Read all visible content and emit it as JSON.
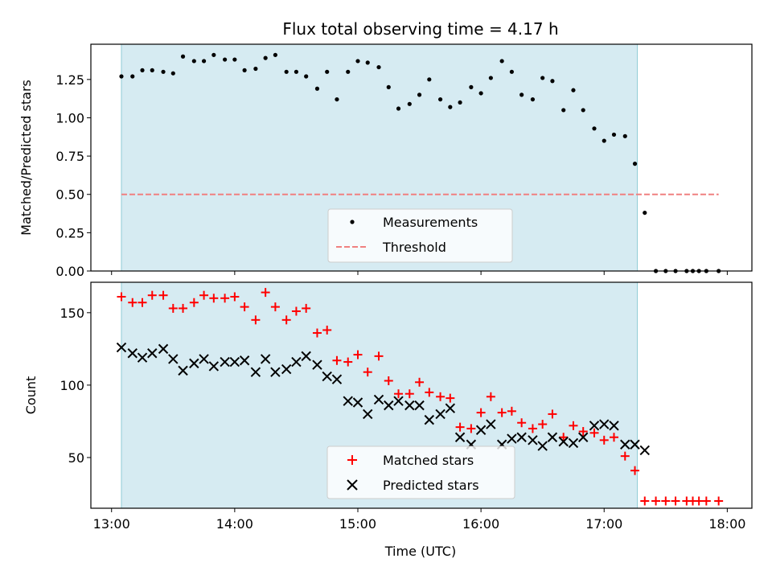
{
  "chart_data": {
    "type": "scatter",
    "title": "Flux total observing time = 4.17 h",
    "xlabel": "Time (UTC)",
    "x_tick_labels": [
      "13:00",
      "14:00",
      "15:00",
      "16:00",
      "17:00",
      "18:00"
    ],
    "x_ticks_hours": [
      13,
      14,
      15,
      16,
      17,
      18
    ],
    "xlim_hours": [
      12.832,
      18.2
    ],
    "shaded_span_hours": [
      13.08,
      17.27
    ],
    "colors": {
      "shade": "#add8e6",
      "measurement": "#000000",
      "threshold": "#f08080",
      "matched": "#ff0000",
      "predicted": "#000000"
    },
    "panels": [
      {
        "ylabel": "Matched/Predicted stars",
        "ylim": [
          0,
          1.48
        ],
        "y_ticks": [
          0.0,
          0.25,
          0.5,
          0.75,
          1.0,
          1.25
        ],
        "y_tick_labels": [
          "0.00",
          "0.25",
          "0.50",
          "0.75",
          "1.00",
          "1.25"
        ],
        "legend_position": "lower-center",
        "series": [
          {
            "name": "Measurements",
            "marker": "dot",
            "points": [
              [
                13.08,
                1.27
              ],
              [
                13.17,
                1.27
              ],
              [
                13.25,
                1.31
              ],
              [
                13.33,
                1.31
              ],
              [
                13.42,
                1.3
              ],
              [
                13.5,
                1.29
              ],
              [
                13.58,
                1.4
              ],
              [
                13.67,
                1.37
              ],
              [
                13.75,
                1.37
              ],
              [
                13.83,
                1.41
              ],
              [
                13.92,
                1.38
              ],
              [
                14.0,
                1.38
              ],
              [
                14.08,
                1.31
              ],
              [
                14.17,
                1.32
              ],
              [
                14.25,
                1.39
              ],
              [
                14.33,
                1.41
              ],
              [
                14.42,
                1.3
              ],
              [
                14.5,
                1.3
              ],
              [
                14.58,
                1.27
              ],
              [
                14.67,
                1.19
              ],
              [
                14.75,
                1.3
              ],
              [
                14.83,
                1.12
              ],
              [
                14.92,
                1.3
              ],
              [
                15.0,
                1.37
              ],
              [
                15.08,
                1.36
              ],
              [
                15.17,
                1.33
              ],
              [
                15.25,
                1.2
              ],
              [
                15.33,
                1.06
              ],
              [
                15.42,
                1.09
              ],
              [
                15.5,
                1.15
              ],
              [
                15.58,
                1.25
              ],
              [
                15.67,
                1.12
              ],
              [
                15.75,
                1.07
              ],
              [
                15.83,
                1.1
              ],
              [
                15.92,
                1.2
              ],
              [
                16.0,
                1.16
              ],
              [
                16.08,
                1.26
              ],
              [
                16.17,
                1.37
              ],
              [
                16.25,
                1.3
              ],
              [
                16.33,
                1.15
              ],
              [
                16.42,
                1.12
              ],
              [
                16.5,
                1.26
              ],
              [
                16.58,
                1.24
              ],
              [
                16.67,
                1.05
              ],
              [
                16.75,
                1.18
              ],
              [
                16.83,
                1.05
              ],
              [
                16.92,
                0.93
              ],
              [
                17.0,
                0.85
              ],
              [
                17.08,
                0.89
              ],
              [
                17.17,
                0.88
              ],
              [
                17.25,
                0.7
              ],
              [
                17.33,
                0.38
              ],
              [
                17.42,
                0.0
              ],
              [
                17.5,
                0.0
              ],
              [
                17.58,
                0.0
              ],
              [
                17.67,
                0.0
              ],
              [
                17.72,
                0.0
              ],
              [
                17.77,
                0.0
              ],
              [
                17.83,
                0.0
              ],
              [
                17.93,
                0.0
              ]
            ]
          },
          {
            "name": "Threshold",
            "marker": "dashed-line",
            "x_range": [
              13.08,
              17.93
            ],
            "value": 0.5
          }
        ]
      },
      {
        "ylabel": "Count",
        "ylim": [
          15,
          171
        ],
        "y_ticks": [
          50,
          100,
          150
        ],
        "y_tick_labels": [
          "50",
          "100",
          "150"
        ],
        "legend_position": "lower-center",
        "series": [
          {
            "name": "Matched stars",
            "marker": "plus",
            "points": [
              [
                13.08,
                161
              ],
              [
                13.17,
                157
              ],
              [
                13.25,
                157
              ],
              [
                13.33,
                162
              ],
              [
                13.42,
                162
              ],
              [
                13.5,
                153
              ],
              [
                13.58,
                153
              ],
              [
                13.67,
                157
              ],
              [
                13.75,
                162
              ],
              [
                13.83,
                160
              ],
              [
                13.92,
                160
              ],
              [
                14.0,
                161
              ],
              [
                14.08,
                154
              ],
              [
                14.17,
                145
              ],
              [
                14.25,
                164
              ],
              [
                14.33,
                154
              ],
              [
                14.42,
                145
              ],
              [
                14.5,
                151
              ],
              [
                14.58,
                153
              ],
              [
                14.67,
                136
              ],
              [
                14.75,
                138
              ],
              [
                14.83,
                117
              ],
              [
                14.92,
                116
              ],
              [
                15.0,
                121
              ],
              [
                15.08,
                109
              ],
              [
                15.17,
                120
              ],
              [
                15.25,
                103
              ],
              [
                15.33,
                94
              ],
              [
                15.42,
                94
              ],
              [
                15.5,
                102
              ],
              [
                15.58,
                95
              ],
              [
                15.67,
                92
              ],
              [
                15.75,
                91
              ],
              [
                15.83,
                71
              ],
              [
                15.92,
                70
              ],
              [
                16.0,
                81
              ],
              [
                16.08,
                92
              ],
              [
                16.17,
                81
              ],
              [
                16.25,
                82
              ],
              [
                16.33,
                74
              ],
              [
                16.42,
                70
              ],
              [
                16.5,
                73
              ],
              [
                16.58,
                80
              ],
              [
                16.67,
                64
              ],
              [
                16.75,
                72
              ],
              [
                16.83,
                68
              ],
              [
                16.92,
                67
              ],
              [
                17.0,
                62
              ],
              [
                17.08,
                64
              ],
              [
                17.17,
                51
              ],
              [
                17.25,
                41
              ],
              [
                17.33,
                20
              ],
              [
                17.42,
                20
              ],
              [
                17.5,
                20
              ],
              [
                17.58,
                20
              ],
              [
                17.67,
                20
              ],
              [
                17.72,
                20
              ],
              [
                17.77,
                20
              ],
              [
                17.83,
                20
              ],
              [
                17.93,
                20
              ]
            ]
          },
          {
            "name": "Predicted stars",
            "marker": "cross",
            "points": [
              [
                13.08,
                126
              ],
              [
                13.17,
                122
              ],
              [
                13.25,
                119
              ],
              [
                13.33,
                122
              ],
              [
                13.42,
                125
              ],
              [
                13.5,
                118
              ],
              [
                13.58,
                110
              ],
              [
                13.67,
                115
              ],
              [
                13.75,
                118
              ],
              [
                13.83,
                113
              ],
              [
                13.92,
                116
              ],
              [
                14.0,
                116
              ],
              [
                14.08,
                117
              ],
              [
                14.17,
                109
              ],
              [
                14.25,
                118
              ],
              [
                14.33,
                109
              ],
              [
                14.42,
                111
              ],
              [
                14.5,
                116
              ],
              [
                14.58,
                120
              ],
              [
                14.67,
                114
              ],
              [
                14.75,
                106
              ],
              [
                14.83,
                104
              ],
              [
                14.92,
                89
              ],
              [
                15.0,
                88
              ],
              [
                15.08,
                80
              ],
              [
                15.17,
                90
              ],
              [
                15.25,
                86
              ],
              [
                15.33,
                89
              ],
              [
                15.42,
                86
              ],
              [
                15.5,
                86
              ],
              [
                15.58,
                76
              ],
              [
                15.67,
                80
              ],
              [
                15.75,
                84
              ],
              [
                15.83,
                64
              ],
              [
                15.92,
                59
              ],
              [
                16.0,
                69
              ],
              [
                16.08,
                73
              ],
              [
                16.17,
                59
              ],
              [
                16.25,
                63
              ],
              [
                16.33,
                64
              ],
              [
                16.42,
                62
              ],
              [
                16.5,
                58
              ],
              [
                16.58,
                64
              ],
              [
                16.67,
                61
              ],
              [
                16.75,
                60
              ],
              [
                16.83,
                64
              ],
              [
                16.92,
                72
              ],
              [
                17.0,
                73
              ],
              [
                17.08,
                72
              ],
              [
                17.17,
                59
              ],
              [
                17.25,
                59
              ],
              [
                17.33,
                55
              ]
            ]
          }
        ]
      }
    ]
  }
}
